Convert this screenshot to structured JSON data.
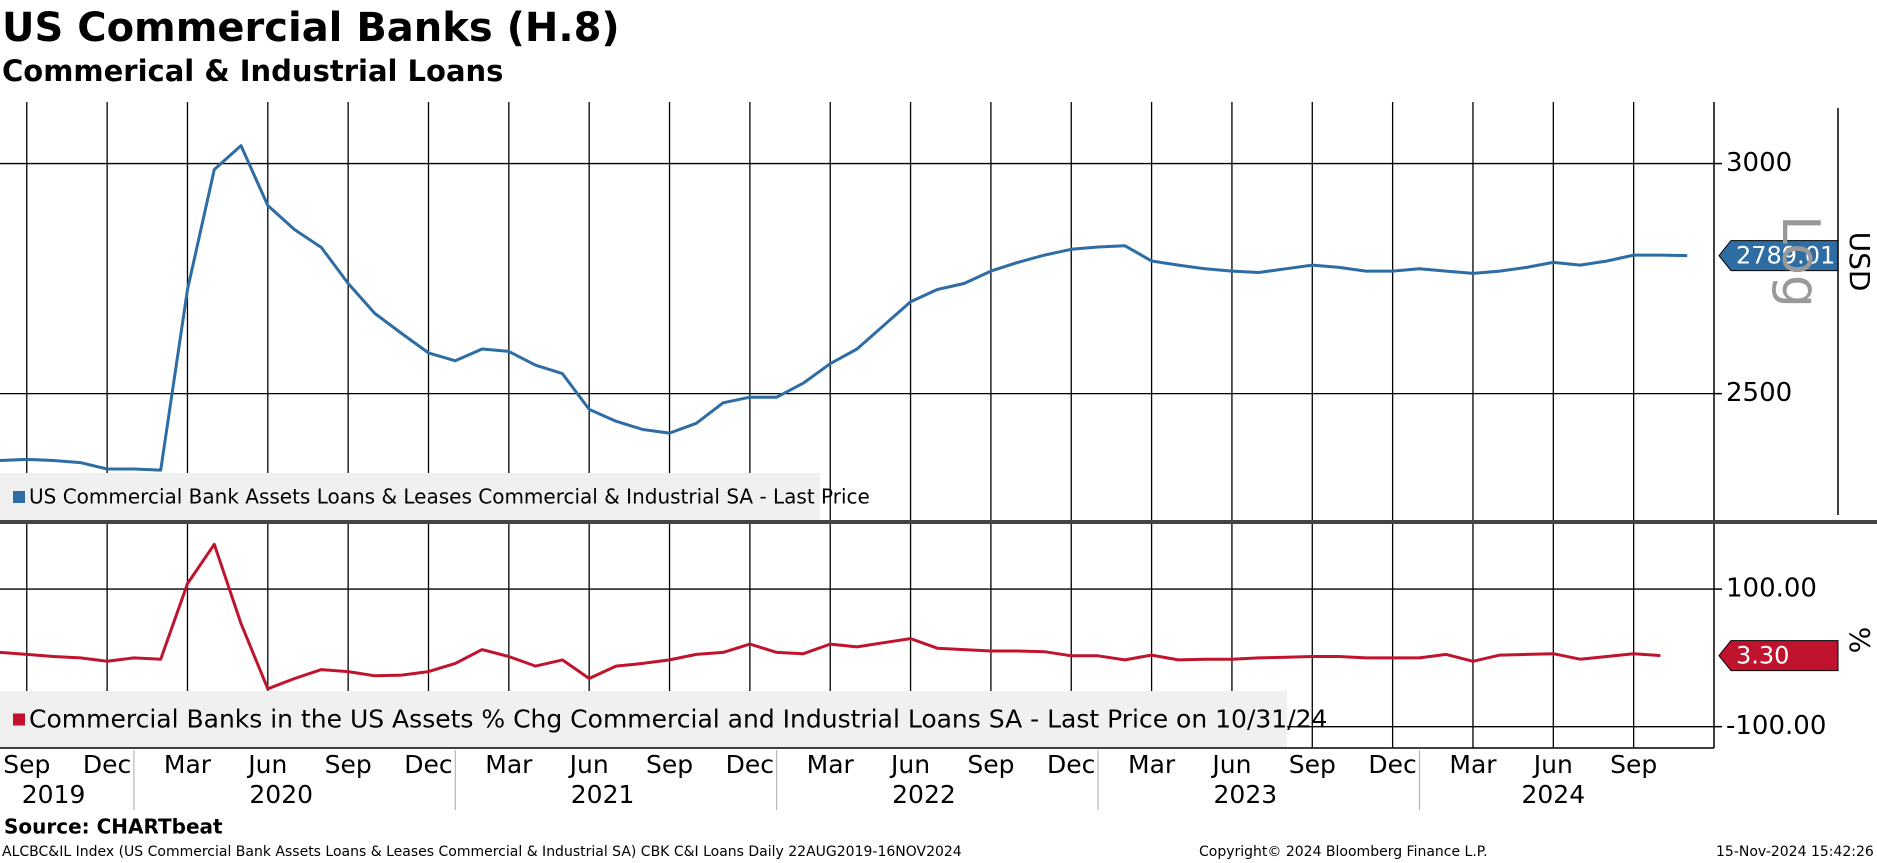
{
  "header": {
    "title": "US Commercial Banks (H.8)",
    "subtitle": "Commerical & Industrial Loans"
  },
  "chart_data": [
    {
      "type": "line",
      "log": true,
      "grid": true,
      "y_label": "USD",
      "scale_label": "Log",
      "xlim": [
        "2019-08",
        "2024-12"
      ],
      "x": [
        "2019-08",
        "2019-09",
        "2019-10",
        "2019-11",
        "2019-12",
        "2020-01",
        "2020-02",
        "2020-03",
        "2020-04",
        "2020-05",
        "2020-06",
        "2020-07",
        "2020-08",
        "2020-09",
        "2020-10",
        "2020-11",
        "2020-12",
        "2021-01",
        "2021-02",
        "2021-03",
        "2021-04",
        "2021-05",
        "2021-06",
        "2021-07",
        "2021-08",
        "2021-09",
        "2021-10",
        "2021-11",
        "2021-12",
        "2022-01",
        "2022-02",
        "2022-03",
        "2022-04",
        "2022-05",
        "2022-06",
        "2022-07",
        "2022-08",
        "2022-09",
        "2022-10",
        "2022-11",
        "2022-12",
        "2023-01",
        "2023-02",
        "2023-03",
        "2023-04",
        "2023-05",
        "2023-06",
        "2023-07",
        "2023-08",
        "2023-09",
        "2023-10",
        "2023-11",
        "2023-12",
        "2024-01",
        "2024-02",
        "2024-03",
        "2024-04",
        "2024-05",
        "2024-06",
        "2024-07",
        "2024-08",
        "2024-09",
        "2024-10",
        "2024-11"
      ],
      "ylim": [
        2260,
        3150
      ],
      "yticks": [
        2500,
        3000
      ],
      "series": [
        {
          "name": "US Commercial Bank Assets Loans & Leases Commercial & Industrial SA - Last Price",
          "color": "#2e6ca4",
          "values": [
            2371,
            2373,
            2371,
            2367,
            2355,
            2355,
            2353,
            2715,
            2986,
            3043,
            2902,
            2847,
            2807,
            2728,
            2664,
            2622,
            2582,
            2566,
            2590,
            2585,
            2557,
            2540,
            2469,
            2446,
            2430,
            2423,
            2442,
            2482,
            2493,
            2493,
            2521,
            2560,
            2590,
            2639,
            2689,
            2715,
            2728,
            2755,
            2774,
            2790,
            2803,
            2808,
            2811,
            2777,
            2768,
            2760,
            2755,
            2752,
            2760,
            2768,
            2763,
            2755,
            2755,
            2760,
            2755,
            2750,
            2755,
            2763,
            2774,
            2768,
            2777,
            2790,
            2790,
            2789.01
          ]
        }
      ]
    },
    {
      "type": "line",
      "grid": true,
      "y_label": "%",
      "xlim": [
        "2019-08",
        "2024-12"
      ],
      "x": [
        "2019-08",
        "2019-09",
        "2019-10",
        "2019-11",
        "2019-12",
        "2020-01",
        "2020-02",
        "2020-03",
        "2020-04",
        "2020-05",
        "2020-06",
        "2020-07",
        "2020-08",
        "2020-09",
        "2020-10",
        "2020-11",
        "2020-12",
        "2021-01",
        "2021-02",
        "2021-03",
        "2021-04",
        "2021-05",
        "2021-06",
        "2021-07",
        "2021-08",
        "2021-09",
        "2021-10",
        "2021-11",
        "2021-12",
        "2022-01",
        "2022-02",
        "2022-03",
        "2022-04",
        "2022-05",
        "2022-06",
        "2022-07",
        "2022-08",
        "2022-09",
        "2022-10",
        "2022-11",
        "2022-12",
        "2023-01",
        "2023-02",
        "2023-03",
        "2023-04",
        "2023-05",
        "2023-06",
        "2023-07",
        "2023-08",
        "2023-09",
        "2023-10",
        "2023-11",
        "2023-12",
        "2024-01",
        "2024-02",
        "2024-03",
        "2024-04",
        "2024-05",
        "2024-06",
        "2024-07",
        "2024-08",
        "2024-09",
        "2024-10"
      ],
      "ylim": [
        -131,
        196
      ],
      "yticks": [
        {
          "value": 100,
          "label": "100.00"
        },
        {
          "value": -100,
          "label": "-100.00"
        }
      ],
      "series": [
        {
          "name": "Commercial Banks in the US Assets % Chg Commercial and Industrial Loans SA - Last Price on 10/31/24",
          "color": "#c0142e",
          "values": [
            8,
            5,
            2,
            0,
            -5,
            0,
            -2,
            108,
            165,
            50,
            -45,
            -30,
            -17,
            -20,
            -26,
            -25,
            -20,
            -8,
            12,
            2,
            -12,
            -3,
            -30,
            -12,
            -8,
            -3,
            5,
            8,
            20,
            8,
            6,
            20,
            16,
            22,
            28,
            14,
            12,
            10,
            10,
            9,
            3,
            3,
            -3,
            4,
            -3,
            -2,
            -2,
            0,
            1,
            2,
            2,
            0,
            0,
            0,
            5,
            -5,
            4,
            5,
            6,
            -2,
            2,
            6,
            3.3
          ],
          "value_labels": [
            null,
            null,
            null,
            null,
            null,
            null,
            null,
            null,
            null,
            null,
            null,
            null,
            null,
            null,
            null,
            null,
            null,
            null,
            null,
            null,
            null,
            null,
            null,
            null,
            null,
            null,
            null,
            null,
            null,
            null,
            null,
            null,
            null,
            null,
            null,
            null,
            null,
            null,
            null,
            null,
            null,
            null,
            null,
            null,
            null,
            null,
            null,
            null,
            null,
            null,
            null,
            null,
            null,
            null,
            null,
            null,
            null,
            null,
            null,
            null,
            null,
            null,
            "3.30"
          ]
        }
      ],
      "xticks": [
        {
          "value": "2019-09",
          "label": "Sep"
        },
        {
          "value": "2019-12",
          "label": "Dec"
        },
        {
          "value": "2020-03",
          "label": "Mar"
        },
        {
          "value": "2020-06",
          "label": "Jun"
        },
        {
          "value": "2020-09",
          "label": "Sep"
        },
        {
          "value": "2020-12",
          "label": "Dec"
        },
        {
          "value": "2021-03",
          "label": "Mar"
        },
        {
          "value": "2021-06",
          "label": "Jun"
        },
        {
          "value": "2021-09",
          "label": "Sep"
        },
        {
          "value": "2021-12",
          "label": "Dec"
        },
        {
          "value": "2022-03",
          "label": "Mar"
        },
        {
          "value": "2022-06",
          "label": "Jun"
        },
        {
          "value": "2022-09",
          "label": "Sep"
        },
        {
          "value": "2022-12",
          "label": "Dec"
        },
        {
          "value": "2023-03",
          "label": "Mar"
        },
        {
          "value": "2023-06",
          "label": "Jun"
        },
        {
          "value": "2023-09",
          "label": "Sep"
        },
        {
          "value": "2023-12",
          "label": "Dec"
        },
        {
          "value": "2024-03",
          "label": "Mar"
        },
        {
          "value": "2024-06",
          "label": "Jun"
        },
        {
          "value": "2024-09",
          "label": "Sep"
        }
      ],
      "year_ticks": [
        "2019",
        "2020",
        "2021",
        "2022",
        "2023",
        "2024"
      ]
    }
  ],
  "footer": {
    "source": "Source: CHARTbeat",
    "description": "ALCBC&IL Index (US Commercial Bank Assets Loans & Leases Commercial & Industrial SA) CBK C&I Loans  Daily 22AUG2019-16NOV2024",
    "copyright": "Copyright© 2024 Bloomberg Finance L.P.",
    "timestamp": "15-Nov-2024 15:42:26"
  }
}
